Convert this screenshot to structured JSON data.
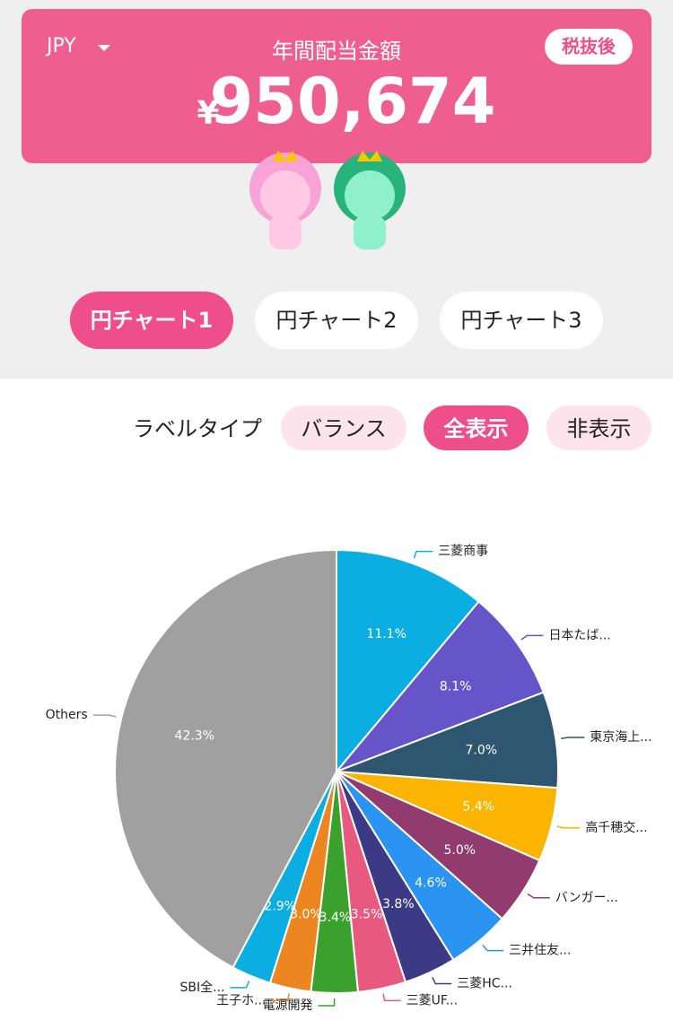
{
  "header": {
    "currency": "JPY",
    "title": "年間配当金額",
    "currency_symbol": "¥",
    "amount": "950,674",
    "tax_badge": "税抜後"
  },
  "tabs": [
    "円チャート1",
    "円チャート2",
    "円チャート3"
  ],
  "label_type": {
    "label": "ラベルタイプ",
    "options": [
      "バランス",
      "全表示",
      "非表示"
    ]
  },
  "chart_data": {
    "type": "pie",
    "categories": [
      "三菱商事",
      "日本たば...",
      "東京海上...",
      "高千穂交...",
      "バンガー...",
      "三井住友...",
      "三菱HC...",
      "三菱UF...",
      "電源開発",
      "王子ホ...",
      "SBI全...",
      "Others"
    ],
    "values": [
      11.1,
      8.1,
      7.0,
      5.4,
      5.0,
      4.6,
      3.8,
      3.5,
      3.4,
      3.0,
      2.9,
      42.3
    ],
    "value_labels": [
      "11.1%",
      "8.1%",
      "7.0%",
      "5.4%",
      "5.0%",
      "4.6%",
      "3.8%",
      "3.5%",
      "3.4%",
      "3.0%",
      "2.9%",
      "42.3%"
    ],
    "colors": [
      "#0aaee0",
      "#6655c8",
      "#2f5670",
      "#fbb400",
      "#923b6e",
      "#2b94f0",
      "#3d3a85",
      "#e9587e",
      "#3aa12d",
      "#ec8620",
      "#0aaee0",
      "#a0a0a0"
    ]
  }
}
